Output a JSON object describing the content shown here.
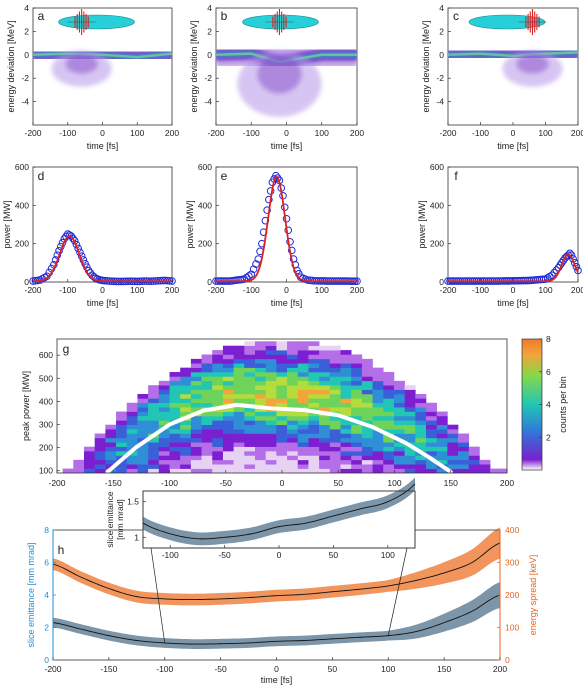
{
  "colors": {
    "axis": "#333333",
    "phase_space": "#7b3fc4",
    "phase_core": "#3a86c8",
    "phase_hot": "#6fcf97",
    "beam_ellipse": "#27d0d8",
    "laser_pulse": "#e02020",
    "measured_circles": "#1f2bd6",
    "fit_line": "#e02020",
    "mean_curve": "#ffffff",
    "emittance": "#1f8fd6",
    "emittance_band": "#6e8aa0",
    "energy_spread": "#e8641e",
    "energy_band": "#f08a4b",
    "inset_line": "#222222"
  },
  "chart_data": [
    {
      "id": "a",
      "type": "heatmap",
      "panel_label": "a",
      "xlabel": "time [fs]",
      "ylabel": "energy deviation [MeV]",
      "xlim": [
        -200,
        200
      ],
      "ylim": [
        -6,
        4
      ],
      "xticks": [
        "-200",
        "-100",
        "0",
        "100",
        "200"
      ],
      "yticks": [
        "-4",
        "-2",
        "0",
        "2",
        "4"
      ],
      "pulse_time": -60,
      "centroid": [
        [
          -200,
          0.0
        ],
        [
          -100,
          0.1
        ],
        [
          0,
          0.0
        ],
        [
          100,
          -0.2
        ],
        [
          200,
          0.1
        ]
      ]
    },
    {
      "id": "b",
      "type": "heatmap",
      "panel_label": "b",
      "xlabel": "time [fs]",
      "ylabel": "energy deviation [MeV]",
      "xlim": [
        -200,
        200
      ],
      "ylim": [
        -6,
        4
      ],
      "xticks": [
        "-200",
        "-100",
        "0",
        "100",
        "200"
      ],
      "yticks": [
        "-4",
        "-2",
        "0",
        "2",
        "4"
      ],
      "pulse_time": -20,
      "centroid": [
        [
          -200,
          0.0
        ],
        [
          -100,
          0.1
        ],
        [
          -20,
          -0.6
        ],
        [
          100,
          0.0
        ],
        [
          200,
          0.0
        ]
      ]
    },
    {
      "id": "c",
      "type": "heatmap",
      "panel_label": "c",
      "xlabel": "time [fs]",
      "ylabel": "energy deviation [MeV]",
      "xlim": [
        -200,
        200
      ],
      "ylim": [
        -6,
        4
      ],
      "xticks": [
        "-200",
        "-100",
        "0",
        "100",
        "200"
      ],
      "yticks": [
        "-4",
        "-2",
        "0",
        "2",
        "4"
      ],
      "pulse_time": 60,
      "centroid": [
        [
          -200,
          0.0
        ],
        [
          -100,
          0.1
        ],
        [
          0,
          -0.1
        ],
        [
          100,
          0.1
        ],
        [
          200,
          0.2
        ]
      ]
    },
    {
      "id": "d",
      "type": "scatter",
      "panel_label": "d",
      "xlabel": "time [fs]",
      "ylabel": "power [MW]",
      "xlim": [
        -200,
        200
      ],
      "ylim": [
        0,
        600
      ],
      "xticks": [
        "-200",
        "-100",
        "0",
        "100",
        "200"
      ],
      "yticks": [
        "0",
        "200",
        "400",
        "600"
      ],
      "x": [
        -200,
        -180,
        -160,
        -140,
        -130,
        -120,
        -110,
        -100,
        -90,
        -80,
        -70,
        -60,
        -50,
        -40,
        -30,
        -20,
        -10,
        0,
        20,
        40,
        60,
        80,
        100,
        120,
        140,
        160,
        180,
        200
      ],
      "y": [
        5,
        10,
        30,
        90,
        140,
        185,
        225,
        250,
        240,
        215,
        175,
        135,
        95,
        60,
        35,
        20,
        12,
        8,
        5,
        3,
        3,
        4,
        3,
        5,
        4,
        6,
        8,
        5
      ],
      "fit": {
        "peak": 235,
        "center": -95,
        "sigma": 28
      }
    },
    {
      "id": "e",
      "type": "scatter",
      "panel_label": "e",
      "xlabel": "time [fs]",
      "ylabel": "power [MW]",
      "xlim": [
        -200,
        200
      ],
      "ylim": [
        0,
        600
      ],
      "xticks": [
        "-200",
        "-100",
        "0",
        "100",
        "200"
      ],
      "yticks": [
        "0",
        "200",
        "400",
        "600"
      ],
      "x": [
        -200,
        -160,
        -120,
        -100,
        -80,
        -70,
        -60,
        -50,
        -40,
        -30,
        -20,
        -10,
        0,
        10,
        20,
        30,
        40,
        60,
        80,
        120,
        160,
        200
      ],
      "y": [
        5,
        5,
        15,
        40,
        120,
        200,
        320,
        430,
        520,
        555,
        530,
        450,
        330,
        210,
        120,
        60,
        25,
        10,
        6,
        5,
        5,
        4
      ],
      "fit": {
        "peak": 545,
        "center": -28,
        "sigma": 24
      }
    },
    {
      "id": "f",
      "type": "scatter",
      "panel_label": "f",
      "xlabel": "time [fs]",
      "ylabel": "power [MW]",
      "xlim": [
        -200,
        200
      ],
      "ylim": [
        0,
        600
      ],
      "xticks": [
        "-200",
        "-100",
        "0",
        "100",
        "200"
      ],
      "yticks": [
        "0",
        "200",
        "400",
        "600"
      ],
      "x": [
        -200,
        -150,
        -100,
        -50,
        0,
        50,
        100,
        120,
        140,
        150,
        160,
        170,
        175,
        180,
        185,
        190,
        200
      ],
      "y": [
        5,
        5,
        5,
        5,
        6,
        8,
        15,
        35,
        75,
        100,
        125,
        140,
        150,
        140,
        120,
        100,
        60
      ],
      "fit": {
        "peak": 140,
        "center": 170,
        "sigma": 20
      }
    },
    {
      "id": "g",
      "type": "heatmap",
      "panel_label": "g",
      "xlabel": "",
      "ylabel": "peak power [MW]",
      "xlim": [
        -200,
        200
      ],
      "ylim": [
        90,
        670
      ],
      "xticks": [
        "-200",
        "-150",
        "-100",
        "-50",
        "0",
        "50",
        "100",
        "150",
        "200"
      ],
      "yticks": [
        "100",
        "200",
        "300",
        "400",
        "500",
        "600"
      ],
      "colorbar": {
        "label": "counts per bin",
        "range": [
          0,
          8
        ],
        "ticks": [
          "2",
          "4",
          "6",
          "8"
        ]
      },
      "mean_curve": {
        "x": [
          -155,
          -130,
          -100,
          -70,
          -40,
          -10,
          20,
          50,
          80,
          110,
          130,
          150
        ],
        "y": [
          95,
          200,
          300,
          360,
          385,
          370,
          362,
          340,
          290,
          220,
          160,
          95
        ]
      }
    },
    {
      "id": "h",
      "type": "line",
      "panel_label": "h",
      "xlabel": "time [fs]",
      "ylabel_left": "slice emittance [mm mrad]",
      "ylabel_right": "energy spread [keV]",
      "xlim": [
        -200,
        200
      ],
      "ylim_left": [
        0,
        8
      ],
      "ylim_right": [
        0,
        400
      ],
      "xticks": [
        "-200",
        "-150",
        "-100",
        "-50",
        "0",
        "50",
        "100",
        "150",
        "200"
      ],
      "yticks_left": [
        "0",
        "2",
        "4",
        "6",
        "8"
      ],
      "yticks_right": [
        "0",
        "100",
        "200",
        "300",
        "400"
      ],
      "x": [
        -200,
        -175,
        -150,
        -125,
        -100,
        -75,
        -50,
        -25,
        0,
        25,
        50,
        75,
        100,
        125,
        150,
        175,
        200
      ],
      "series": [
        {
          "name": "slice emittance",
          "axis": "left",
          "values": [
            2.3,
            1.9,
            1.5,
            1.2,
            1.05,
            0.98,
            1.0,
            1.05,
            1.15,
            1.2,
            1.3,
            1.4,
            1.5,
            1.75,
            2.3,
            3.0,
            4.0
          ],
          "band": 0.3
        },
        {
          "name": "energy spread",
          "axis": "right",
          "values": [
            295,
            255,
            220,
            195,
            188,
            186,
            188,
            192,
            198,
            202,
            210,
            218,
            228,
            245,
            268,
            300,
            360
          ],
          "band": 18
        }
      ],
      "inset": {
        "ylabel": "slice emittance [mm mrad]",
        "xlim": [
          -125,
          125
        ],
        "ylim": [
          0.85,
          1.65
        ],
        "xticks": [
          "-100",
          "-50",
          "0",
          "50",
          "100"
        ],
        "yticks": [
          "1",
          "1.5"
        ]
      }
    }
  ]
}
